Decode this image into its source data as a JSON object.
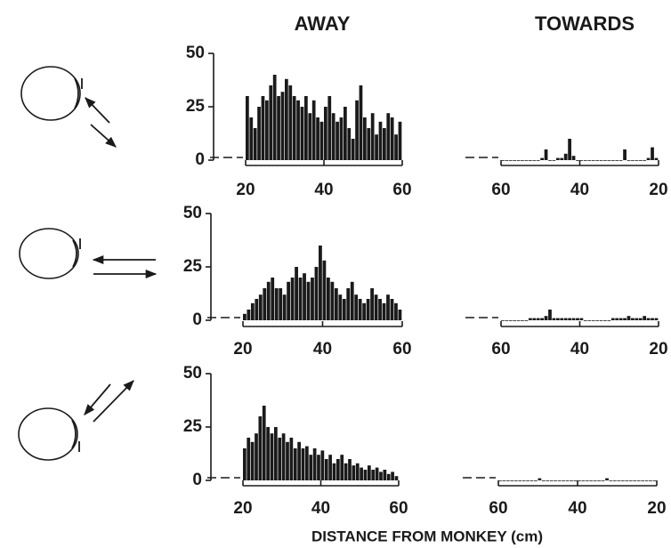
{
  "column_titles": [
    "AWAY",
    "TOWARDS"
  ],
  "x_label": "DISTANCE FROM MONKEY (cm)",
  "chart_data": [
    {
      "type": "histogram",
      "color": "#1a1a1a",
      "bins": [
        20,
        21,
        22,
        23,
        24,
        25,
        26,
        27,
        28,
        29,
        30,
        31,
        32,
        33,
        34,
        35,
        36,
        37,
        38,
        39,
        40,
        41,
        42,
        43,
        44,
        45,
        46,
        47,
        48,
        49,
        50,
        51,
        52,
        53,
        54,
        55,
        56,
        57,
        58,
        59,
        60
      ],
      "values": [
        30,
        20,
        15,
        25,
        30,
        28,
        35,
        40,
        30,
        32,
        38,
        35,
        30,
        28,
        25,
        30,
        22,
        28,
        20,
        18,
        25,
        30,
        22,
        18,
        20,
        25,
        15,
        10,
        28,
        35,
        20,
        15,
        22,
        12,
        18,
        15,
        22,
        20,
        12,
        18
      ],
      "xlim": [
        20,
        60
      ],
      "xticks": [
        20,
        40,
        60
      ],
      "ylim": [
        0,
        50
      ],
      "yticks": [
        0,
        25,
        50
      ]
    },
    {
      "type": "histogram",
      "color": "#1a1a1a",
      "bins": [
        20,
        21,
        22,
        23,
        24,
        25,
        26,
        27,
        28,
        29,
        30,
        31,
        32,
        33,
        34,
        35,
        36,
        37,
        38,
        39,
        40,
        41,
        42,
        43,
        44,
        45,
        46,
        47,
        48,
        49,
        50,
        51,
        52,
        53,
        54,
        55,
        56,
        57,
        58,
        59,
        60
      ],
      "values": [
        1,
        6,
        1,
        0,
        0,
        0,
        0,
        0,
        5,
        0,
        0,
        0,
        0,
        0,
        0,
        0,
        0,
        0,
        0,
        0,
        0,
        2,
        10,
        3,
        1,
        1,
        0,
        0,
        5,
        1,
        0,
        0,
        0,
        0,
        0,
        0,
        0,
        0,
        0,
        0
      ],
      "xlim": [
        60,
        20
      ],
      "xticks": [
        60,
        40,
        20
      ],
      "ylim": [
        0,
        50
      ]
    },
    {
      "type": "histogram",
      "color": "#1a1a1a",
      "bins": [
        20,
        21,
        22,
        23,
        24,
        25,
        26,
        27,
        28,
        29,
        30,
        31,
        32,
        33,
        34,
        35,
        36,
        37,
        38,
        39,
        40,
        41,
        42,
        43,
        44,
        45,
        46,
        47,
        48,
        49,
        50,
        51,
        52,
        53,
        54,
        55,
        56,
        57,
        58,
        59,
        60
      ],
      "values": [
        3,
        5,
        8,
        10,
        12,
        15,
        18,
        20,
        15,
        15,
        12,
        18,
        20,
        25,
        20,
        22,
        18,
        20,
        25,
        35,
        28,
        20,
        18,
        15,
        12,
        10,
        15,
        18,
        12,
        10,
        8,
        10,
        15,
        12,
        10,
        8,
        12,
        10,
        8,
        5
      ],
      "xlim": [
        20,
        60
      ],
      "xticks": [
        20,
        40,
        60
      ],
      "ylim": [
        0,
        50
      ],
      "yticks": [
        0,
        25,
        50
      ]
    },
    {
      "type": "histogram",
      "color": "#1a1a1a",
      "bins": [
        20,
        21,
        22,
        23,
        24,
        25,
        26,
        27,
        28,
        29,
        30,
        31,
        32,
        33,
        34,
        35,
        36,
        37,
        38,
        39,
        40,
        41,
        42,
        43,
        44,
        45,
        46,
        47,
        48,
        49,
        50,
        51,
        52,
        53,
        54,
        55,
        56,
        57,
        58,
        59,
        60
      ],
      "values": [
        1,
        1,
        1,
        2,
        1,
        1,
        1,
        2,
        1,
        1,
        1,
        1,
        0,
        0,
        0,
        0,
        0,
        0,
        0,
        1,
        1,
        1,
        1,
        1,
        1,
        1,
        1,
        5,
        2,
        1,
        1,
        1,
        1,
        0,
        0,
        0,
        0,
        0,
        0,
        0
      ],
      "xlim": [
        60,
        20
      ],
      "xticks": [
        60,
        40,
        20
      ],
      "ylim": [
        0,
        50
      ]
    },
    {
      "type": "histogram",
      "color": "#1a1a1a",
      "bins": [
        20,
        21,
        22,
        23,
        24,
        25,
        26,
        27,
        28,
        29,
        30,
        31,
        32,
        33,
        34,
        35,
        36,
        37,
        38,
        39,
        40,
        41,
        42,
        43,
        44,
        45,
        46,
        47,
        48,
        49,
        50,
        51,
        52,
        53,
        54,
        55,
        56,
        57,
        58,
        59,
        60
      ],
      "values": [
        15,
        20,
        18,
        22,
        30,
        35,
        25,
        22,
        25,
        20,
        22,
        18,
        20,
        15,
        18,
        15,
        16,
        12,
        15,
        12,
        14,
        10,
        12,
        8,
        10,
        12,
        8,
        10,
        7,
        8,
        6,
        5,
        7,
        5,
        6,
        4,
        5,
        3,
        4,
        2
      ],
      "xlim": [
        20,
        60
      ],
      "xticks": [
        20,
        40,
        60
      ],
      "ylim": [
        0,
        50
      ],
      "yticks": [
        0,
        25,
        50
      ]
    },
    {
      "type": "histogram",
      "color": "#1a1a1a",
      "bins": [
        20,
        21,
        22,
        23,
        24,
        25,
        26,
        27,
        28,
        29,
        30,
        31,
        32,
        33,
        34,
        35,
        36,
        37,
        38,
        39,
        40,
        41,
        42,
        43,
        44,
        45,
        46,
        47,
        48,
        49,
        50,
        51,
        52,
        53,
        54,
        55,
        56,
        57,
        58,
        59,
        60
      ],
      "values": [
        0,
        0,
        0,
        0,
        0,
        0,
        0,
        0,
        0,
        0,
        0,
        0,
        1,
        0,
        0,
        0,
        0,
        0,
        0,
        0,
        0,
        0,
        0,
        0,
        0,
        0,
        0,
        0,
        0,
        1,
        0,
        0,
        0,
        0,
        0,
        0,
        0,
        0,
        0,
        0
      ],
      "xlim": [
        60,
        20
      ],
      "xticks": [
        60,
        40,
        20
      ],
      "ylim": [
        0,
        50
      ]
    }
  ]
}
